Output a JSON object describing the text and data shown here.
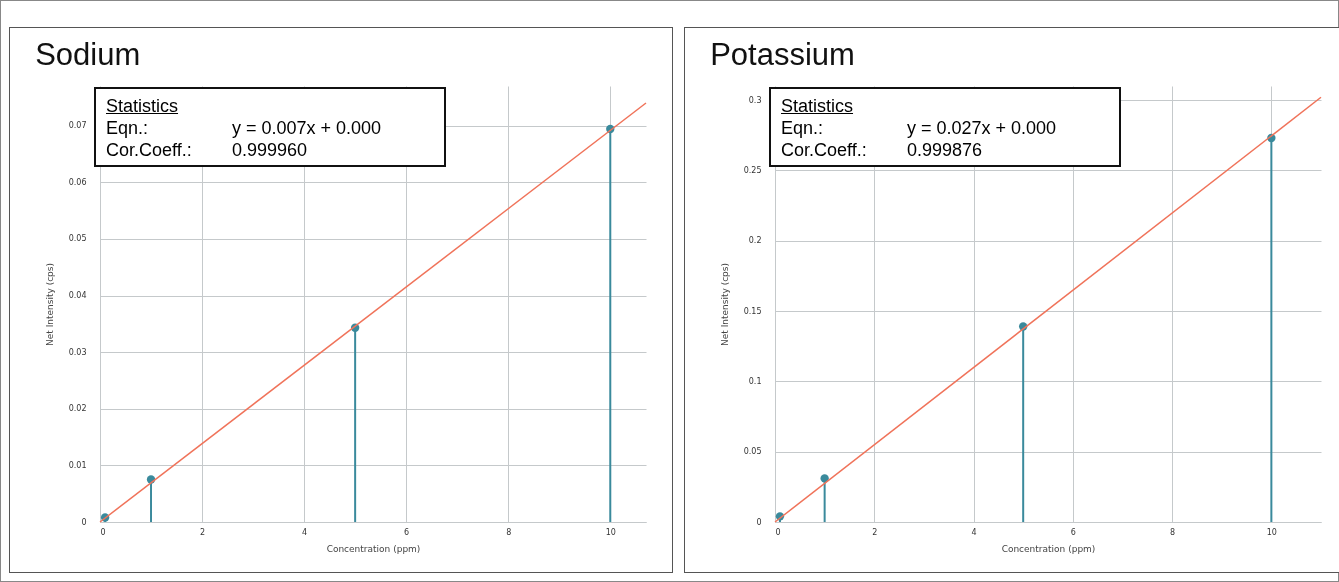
{
  "chart_data": [
    {
      "type": "lollipop",
      "title": "Sodium",
      "xlabel": "Concentration (ppm)",
      "ylabel": "Net Intensity (cps)",
      "xlim": [
        0,
        10.7
      ],
      "ylim": [
        0,
        0.077
      ],
      "xticks": [
        0,
        2,
        4,
        6,
        8,
        10
      ],
      "yticks": [
        0,
        0.01,
        0.02,
        0.03,
        0.04,
        0.05,
        0.06,
        0.07
      ],
      "grid": true,
      "annotations": [
        "Statistics",
        "Eqn.:",
        "y = 0.007x + 0.000",
        "Cor.Coeff.:",
        "0.999960"
      ],
      "series": [
        {
          "marker": "circle",
          "color": "#3a8a9c",
          "x": [
            0.1,
            1,
            5,
            10
          ],
          "values": [
            0.0008,
            0.0075,
            0.0343,
            0.0694
          ]
        },
        {
          "type": "line",
          "color": "#f0735a",
          "x": [
            0,
            10.7
          ],
          "values": [
            0,
            0.074
          ]
        }
      ]
    },
    {
      "type": "lollipop",
      "title": "Potassium",
      "xlabel": "Concentration (ppm)",
      "ylabel": "Net Intensity (cps)",
      "xlim": [
        0,
        11
      ],
      "ylim": [
        0,
        0.31
      ],
      "xticks": [
        0,
        2,
        4,
        6,
        8,
        10
      ],
      "yticks": [
        0,
        0.05,
        0.1,
        0.15,
        0.2,
        0.25,
        0.3
      ],
      "grid": true,
      "annotations": [
        "Statistics",
        "Eqn.:",
        "y = 0.027x + 0.000",
        "Cor.Coeff.:",
        "0.999876"
      ],
      "series": [
        {
          "marker": "circle",
          "color": "#3a8a9c",
          "x": [
            0.1,
            1,
            5,
            10
          ],
          "values": [
            0.004,
            0.031,
            0.139,
            0.273
          ]
        },
        {
          "type": "line",
          "color": "#f0735a",
          "x": [
            0,
            11
          ],
          "values": [
            0,
            0.302
          ]
        }
      ]
    }
  ]
}
